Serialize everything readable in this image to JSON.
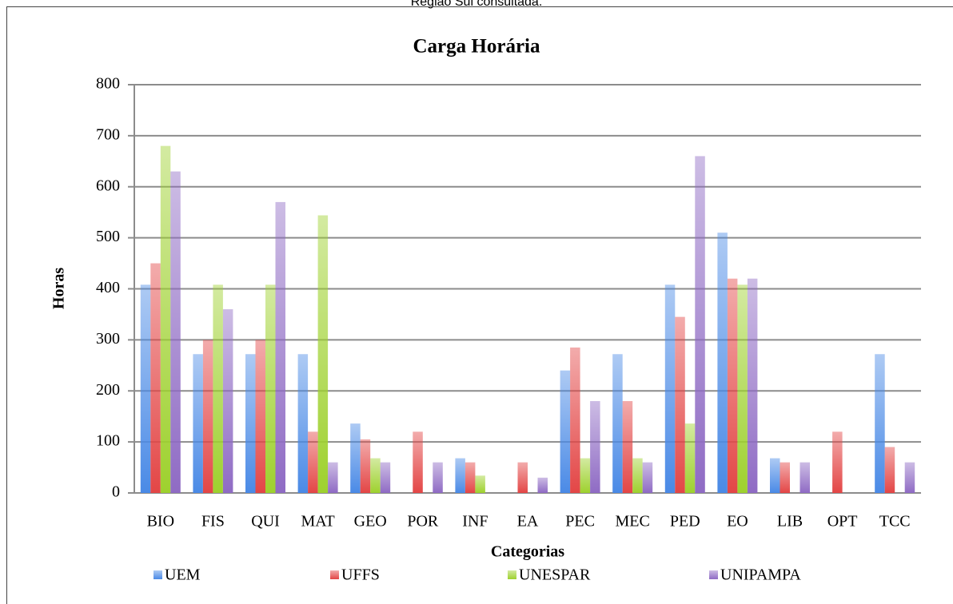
{
  "header_text": "Região Sul consultada.",
  "chart_data": {
    "type": "bar",
    "title": "Carga Horária",
    "x_label": "Categorias",
    "y_label": "Horas",
    "categories": [
      "BIO",
      "FIS",
      "QUI",
      "MAT",
      "GEO",
      "POR",
      "INF",
      "EA",
      "PEC",
      "MEC",
      "PED",
      "EO",
      "LIB",
      "OPT",
      "TCC"
    ],
    "series": [
      {
        "name": "UEM",
        "color": "#4a8ae6",
        "values": [
          408,
          272,
          272,
          272,
          136,
          0,
          68,
          0,
          240,
          272,
          408,
          510,
          68,
          0,
          272
        ]
      },
      {
        "name": "UFFS",
        "color": "#e34646",
        "values": [
          450,
          300,
          300,
          120,
          105,
          120,
          60,
          60,
          285,
          180,
          345,
          420,
          60,
          120,
          90
        ]
      },
      {
        "name": "UNESPAR",
        "color": "#9ed12e",
        "values": [
          680,
          408,
          408,
          544,
          68,
          0,
          34,
          0,
          68,
          68,
          136,
          408,
          0,
          0,
          0
        ]
      },
      {
        "name": "UNIPAMPA",
        "color": "#8f6bc4",
        "values": [
          630,
          360,
          570,
          60,
          60,
          60,
          0,
          30,
          180,
          60,
          660,
          420,
          60,
          0,
          60
        ]
      }
    ],
    "ylim": [
      0,
      800
    ],
    "yticks": [
      0,
      100,
      200,
      300,
      400,
      500,
      600,
      700,
      800
    ],
    "grid": true,
    "legend": "bottom"
  }
}
